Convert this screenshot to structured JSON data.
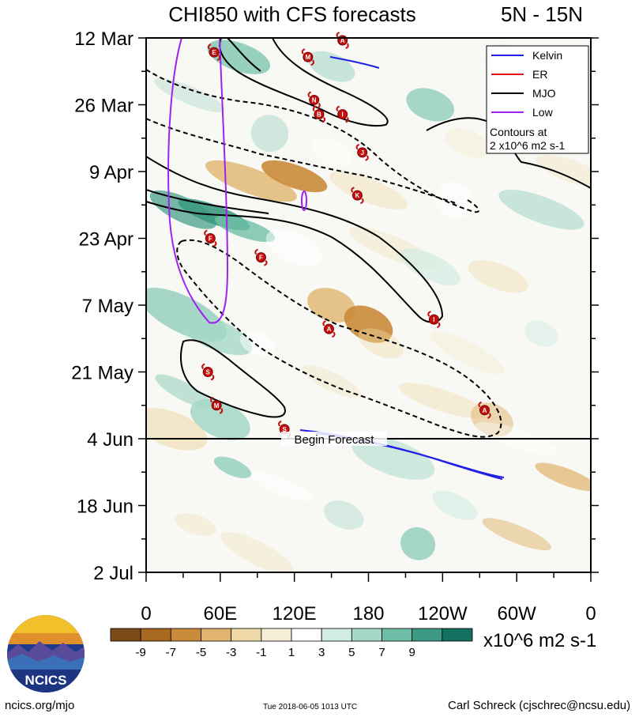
{
  "chart_data": {
    "type": "heatmap",
    "title": "CHI850 with CFS forecasts",
    "region": "5N - 15N",
    "x_ticks": [
      "0",
      "60E",
      "120E",
      "180",
      "120W",
      "60W",
      "0"
    ],
    "x_range_deg_east": [
      0,
      360
    ],
    "y_ticks": [
      "12 Mar",
      "26 Mar",
      "9 Apr",
      "23 Apr",
      "7 May",
      "21 May",
      "4 Jun",
      "18 Jun",
      "2 Jul"
    ],
    "y_range_days_from_12_Mar": [
      0,
      112
    ],
    "forecast_line": {
      "day": 84,
      "label": "Begin Forecast"
    },
    "legend": {
      "position": "top-right",
      "entries": [
        {
          "name": "Kelvin",
          "color": "#1f1fe6"
        },
        {
          "name": "ER",
          "color": "#e01010"
        },
        {
          "name": "MJO",
          "color": "#000000"
        },
        {
          "name": "Low",
          "color": "#a020f0"
        }
      ],
      "note": [
        "Contours at",
        "2 x10^6 m2 s-1"
      ]
    },
    "colorbar": {
      "labels": [
        "-9",
        "-7",
        "-5",
        "-3",
        "-1",
        "1",
        "3",
        "5",
        "7",
        "9"
      ],
      "unit": "x10^6 m2 s-1",
      "colors": [
        "#7a4b16",
        "#a8681f",
        "#c98b3a",
        "#e0b46c",
        "#f0d9a8",
        "#f5eed8",
        "#ffffff",
        "#d3ece3",
        "#a6d8c8",
        "#6fbfa8",
        "#3d9a84",
        "#15705f"
      ]
    },
    "storms": [
      {
        "letter": "E",
        "lon": 55,
        "day": 3
      },
      {
        "letter": "A",
        "lon": 159,
        "day": 0.5
      },
      {
        "letter": "M",
        "lon": 131,
        "day": 4
      },
      {
        "letter": "N",
        "lon": 136,
        "day": 13
      },
      {
        "letter": "B",
        "lon": 140,
        "day": 16
      },
      {
        "letter": "I",
        "lon": 159,
        "day": 16
      },
      {
        "letter": "J",
        "lon": 175,
        "day": 24
      },
      {
        "letter": "K",
        "lon": 171,
        "day": 33
      },
      {
        "letter": "F",
        "lon": 52,
        "day": 42
      },
      {
        "letter": "F",
        "lon": 93,
        "day": 46
      },
      {
        "letter": "A",
        "lon": 148,
        "day": 61
      },
      {
        "letter": "I",
        "lon": 233,
        "day": 59
      },
      {
        "letter": "S",
        "lon": 50,
        "day": 70
      },
      {
        "letter": "M",
        "lon": 57,
        "day": 77
      },
      {
        "letter": "A",
        "lon": 274,
        "day": 78
      },
      {
        "letter": "S",
        "lon": 112,
        "day": 82
      }
    ]
  },
  "footer": {
    "site": "ncics.org/mjo",
    "timestamp": "Tue 2018-06-05 1013 UTC",
    "author": "Carl Schreck (cjschrec@ncsu.edu)",
    "logo_text": "NCICS"
  }
}
